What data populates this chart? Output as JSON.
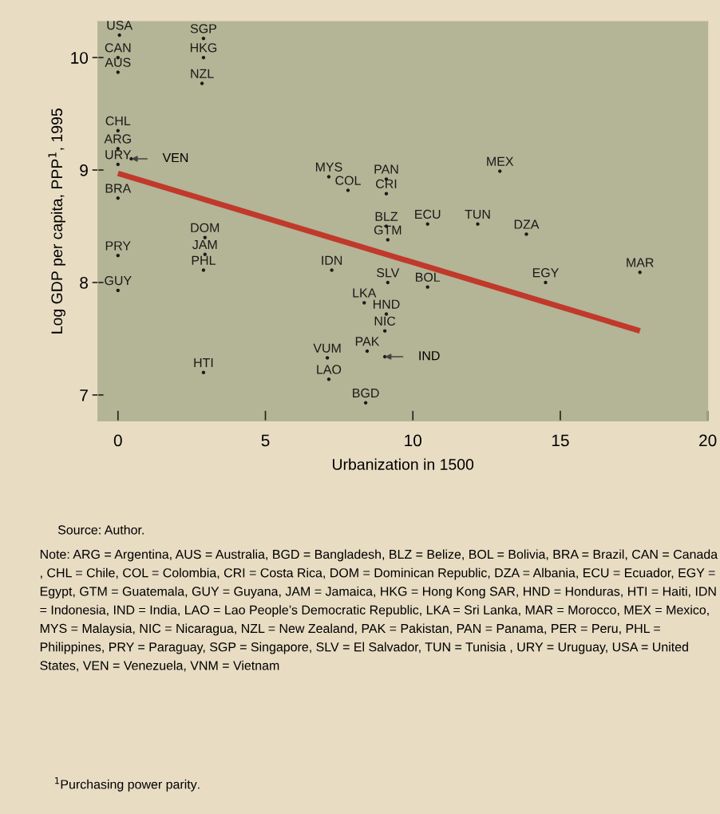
{
  "chart_data": {
    "type": "scatter",
    "xlabel": "Urbanization in 1500",
    "ylabel": "Log GDP per capita, PPP$^{1}$, 1995",
    "xlim": [
      -0.68,
      20
    ],
    "xticks": [
      0,
      5,
      10,
      15,
      20
    ],
    "ylim": [
      6.77,
      10.32
    ],
    "yticks": [
      7,
      8,
      9,
      10
    ],
    "grid": false,
    "legend": false,
    "series": [
      {
        "marker": "circle",
        "color": "#1a1a1a",
        "x": [
          0.05,
          0,
          0,
          2.9,
          2.9,
          2.85,
          0,
          0,
          0,
          0,
          2.95,
          2.95,
          2.9,
          0,
          0,
          2.9,
          7.15,
          7.8,
          9.1,
          9.1,
          9.1,
          9.15,
          10.5,
          12.2,
          12.95,
          13.85,
          7.25,
          9.15,
          10.5,
          14.5,
          17.7,
          8.35,
          9.1,
          9.05,
          8.45,
          7.1,
          7.15,
          8.4,
          0.45,
          9.05
        ],
        "values": [
          10.2,
          10.0,
          9.87,
          10.17,
          10.0,
          9.77,
          9.35,
          9.19,
          9.05,
          8.75,
          8.4,
          8.25,
          8.11,
          8.24,
          7.93,
          7.2,
          8.94,
          8.82,
          8.92,
          8.79,
          8.5,
          8.38,
          8.52,
          8.52,
          8.99,
          8.43,
          8.11,
          8.0,
          7.96,
          8.0,
          8.09,
          7.82,
          7.72,
          7.57,
          7.39,
          7.33,
          7.14,
          6.93,
          9.1,
          7.34
        ],
        "value_labels": [
          "USA",
          "CAN",
          "AUS",
          "SGP",
          "HKG",
          "NZL",
          "CHL",
          "ARG",
          "URY",
          "BRA",
          "DOM",
          "JAM",
          "PHL",
          "PRY",
          "GUY",
          "HTI",
          "MYS",
          "COL",
          "PAN",
          "CRI",
          "BLZ",
          "GTM",
          "ECU",
          "TUN",
          "MEX",
          "DZA",
          "IDN",
          "SLV",
          "BOL",
          "EGY",
          "MAR",
          "LKA",
          "HND",
          "NIC",
          "PAK",
          "VUM",
          "LAO",
          "BGD",
          null,
          null
        ]
      },
      {
        "type": "line",
        "color": "#c0392b",
        "x": [
          0,
          17.7
        ],
        "values": [
          8.97,
          7.57
        ]
      }
    ],
    "annotations": [
      {
        "text": "VEN",
        "x": 0.45,
        "y": 9.1
      },
      {
        "text": "IND",
        "x": 9.05,
        "y": 7.34
      },
      "Source: Author.",
      "Note: ARG = Argentina, AUS = Australia, BGD = Bangladesh, BLZ = Belize, BOL = Bolivia, BRA = Brazil, CAN = Canada , CHL = Chile, COL = Colombia, CRI = Costa Rica, DOM = Dominican Republic, DZA = Albania, ECU = Ecuador, EGY = Egypt, GTM = Guatemala, GUY = Guyana, JAM = Jamaica, HKG = Hong Kong SAR, HND = Honduras, HTI = Haiti, IDN = Indonesia, IND = India, LAO = Lao People’s Democratic Republic, LKA = Sri Lanka, MAR = Morocco, MEX = Mexico, MYS = Malaysia, NIC = Nicaragua, NZL = New Zealand, PAK = Pakistan, PAN = Panama, PER = Peru, PHL = Philippines, PRY = Paraguay, SGP = Singapore, SLV = El Salvador, TUN = Tunisia , URY = Uruguay, USA = United States, VEN = Venezuela, VNM = Vietnam",
      "$^{1}$Purchasing power parity."
    ]
  }
}
